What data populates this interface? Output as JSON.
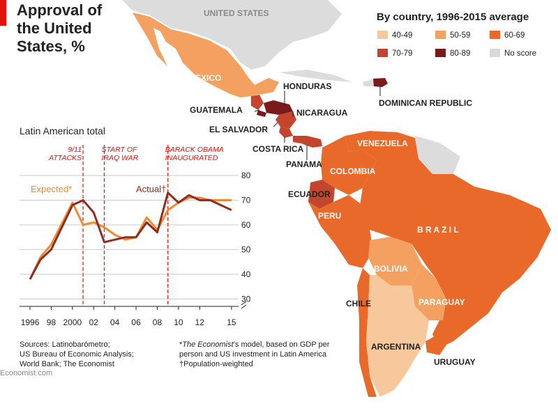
{
  "title": [
    "Approval of",
    "the United",
    "States, %"
  ],
  "map": {
    "legend_title": "By country, 1996-2015 average",
    "legend": [
      {
        "label": "40-49",
        "color": "#f7c89b"
      },
      {
        "label": "50-59",
        "color": "#f4a060"
      },
      {
        "label": "60-69",
        "color": "#e8692a"
      },
      {
        "label": "70-79",
        "color": "#c4452e"
      },
      {
        "label": "80-89",
        "color": "#7b1a1a"
      },
      {
        "label": "No score",
        "color": "#d9d9d9"
      }
    ],
    "countries": {
      "united_states": "UNITED STATES",
      "mexico": "MEXICO",
      "honduras": "HONDURAS",
      "guatemala": "GUATEMALA",
      "nicaragua": "NICARAGUA",
      "el_salvador": "EL SALVADOR",
      "costa_rica": "COSTA RICA",
      "panama": "PANAMA",
      "dominican_republic": "DOMINICAN REPUBLIC",
      "venezuela": "VENEZUELA",
      "colombia": "COLOMBIA",
      "ecuador": "ECUADOR",
      "peru": "PERU",
      "brazil": "B R A Z I L",
      "bolivia": "BOLIVIA",
      "chile": "CHILE",
      "paraguay": "PARAGUAY",
      "argentina": "ARGENTINA",
      "uruguay": "URUGUAY"
    }
  },
  "chart_data": {
    "type": "line",
    "title": "Latin American total",
    "x": [
      1996,
      1997,
      1998,
      2000,
      2001,
      2002,
      2003,
      2004,
      2005,
      2006,
      2007,
      2008,
      2009,
      2010,
      2011,
      2012,
      2013,
      2014,
      2015
    ],
    "x_ticks": [
      "1996",
      "98",
      "2000",
      "02",
      "04",
      "06",
      "08",
      "10",
      "12",
      "15"
    ],
    "x_tick_values": [
      1996,
      1998,
      2000,
      2002,
      2004,
      2006,
      2008,
      2010,
      2012,
      2015
    ],
    "y_ticks": [
      "30",
      "40",
      "50",
      "60",
      "70",
      "80"
    ],
    "y_tick_values": [
      30,
      40,
      50,
      60,
      70,
      80
    ],
    "ylim": [
      27,
      80
    ],
    "xlim": [
      1995.8,
      2015.4
    ],
    "series": [
      {
        "name": "Expected*",
        "color": "#f08a2e",
        "values": [
          38,
          47,
          52,
          69,
          60,
          61,
          59,
          56,
          54,
          55,
          63,
          58,
          66,
          69,
          71,
          71,
          70,
          70,
          70
        ]
      },
      {
        "name": "Actual†",
        "color": "#8a2f22",
        "values": [
          38,
          46,
          50,
          68,
          70,
          65,
          53,
          54,
          55,
          55,
          61,
          57,
          73,
          69,
          72,
          70,
          70,
          68,
          66
        ]
      }
    ],
    "events": [
      {
        "x": 2001,
        "lines": [
          "9/11",
          "ATTACKS"
        ]
      },
      {
        "x": 2003,
        "lines": [
          "START OF",
          "IRAQ WAR"
        ]
      },
      {
        "x": 2009,
        "lines": [
          "BARACK OBAMA",
          "INAUGURATED"
        ]
      }
    ],
    "grid": true,
    "legend_placement": "inline"
  },
  "sources": [
    "Sources: Latinobarómetro;",
    "US Bureau of Economic Analysis;",
    "World Bank; The Economist"
  ],
  "footnote": {
    "line1_italic": "The Economist",
    "line1_prefix": "*",
    "line1_rest": "’s model, based on GDP per",
    "line2": "person and US investment in Latin America",
    "line3": "†Population-weighted"
  },
  "footer": "Economist.com"
}
